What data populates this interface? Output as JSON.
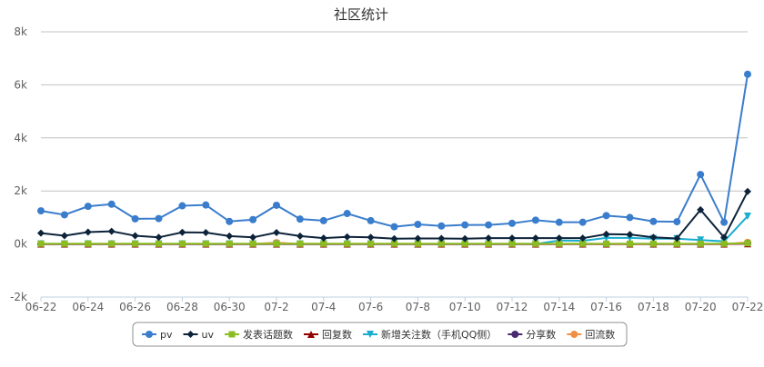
{
  "chart_data": {
    "type": "line",
    "title": "社区统计",
    "xlabel": "",
    "ylabel": "",
    "x": [
      "06-22",
      "06-23",
      "06-24",
      "06-25",
      "06-26",
      "06-27",
      "06-28",
      "06-29",
      "06-30",
      "07-1",
      "07-2",
      "07-3",
      "07-4",
      "07-5",
      "07-6",
      "07-7",
      "07-8",
      "07-9",
      "07-10",
      "07-11",
      "07-12",
      "07-13",
      "07-14",
      "07-15",
      "07-16",
      "07-17",
      "07-18",
      "07-19",
      "07-20",
      "07-21",
      "07-22"
    ],
    "x_tick_labels": [
      "06-22",
      "06-24",
      "06-26",
      "06-28",
      "06-30",
      "07-2",
      "07-4",
      "07-6",
      "07-8",
      "07-10",
      "07-12",
      "07-14",
      "07-16",
      "07-18",
      "07-20",
      "07-22"
    ],
    "y_tick_values": [
      -2000,
      0,
      2000,
      4000,
      6000,
      8000
    ],
    "y_tick_labels": [
      "-2k",
      "0k",
      "2k",
      "4k",
      "6k",
      "8k"
    ],
    "ylim": [
      -2000,
      8000
    ],
    "grid": true,
    "legend_position": "bottom",
    "series": [
      {
        "name": "pv",
        "color": "#3a7dcc",
        "marker": "circle",
        "values": [
          1250,
          1100,
          1420,
          1500,
          950,
          960,
          1440,
          1470,
          850,
          920,
          1460,
          940,
          880,
          1150,
          880,
          650,
          740,
          680,
          720,
          720,
          780,
          900,
          820,
          820,
          1070,
          1000,
          850,
          840,
          2620,
          820,
          6400
        ]
      },
      {
        "name": "uv",
        "color": "#0d233a",
        "marker": "diamond",
        "values": [
          410,
          310,
          450,
          480,
          310,
          250,
          440,
          430,
          300,
          250,
          430,
          300,
          220,
          270,
          250,
          200,
          210,
          210,
          200,
          220,
          220,
          220,
          220,
          220,
          370,
          360,
          250,
          210,
          1290,
          250,
          1980
        ]
      },
      {
        "name": "发表话题数",
        "color": "#8bbc21",
        "marker": "square",
        "values": [
          10,
          10,
          10,
          10,
          10,
          10,
          10,
          10,
          10,
          10,
          10,
          10,
          10,
          10,
          10,
          10,
          10,
          10,
          10,
          10,
          10,
          10,
          10,
          10,
          10,
          10,
          10,
          10,
          10,
          10,
          30
        ]
      },
      {
        "name": "回复数",
        "color": "#910000",
        "marker": "triangle",
        "values": [
          5,
          5,
          5,
          5,
          5,
          5,
          5,
          5,
          5,
          5,
          5,
          5,
          5,
          5,
          5,
          5,
          5,
          5,
          5,
          5,
          5,
          5,
          5,
          5,
          5,
          5,
          5,
          5,
          5,
          5,
          10
        ]
      },
      {
        "name": "新增关注数（手机QQ侧）",
        "color": "#1aadce",
        "marker": "triangle-down",
        "values": [
          0,
          0,
          0,
          0,
          0,
          0,
          0,
          0,
          0,
          0,
          0,
          0,
          0,
          0,
          0,
          0,
          0,
          0,
          0,
          0,
          0,
          0,
          130,
          120,
          230,
          230,
          200,
          200,
          150,
          100,
          1050
        ]
      },
      {
        "name": "分享数",
        "color": "#492970",
        "marker": "circle",
        "values": [
          0,
          0,
          0,
          0,
          0,
          0,
          0,
          0,
          0,
          0,
          0,
          0,
          0,
          0,
          0,
          0,
          0,
          0,
          0,
          0,
          0,
          0,
          0,
          0,
          0,
          0,
          0,
          0,
          0,
          0,
          20
        ]
      },
      {
        "name": "回流数",
        "color": "#f28f43",
        "marker": "circle",
        "values": [
          0,
          0,
          0,
          0,
          0,
          0,
          0,
          0,
          0,
          0,
          50,
          0,
          0,
          0,
          0,
          0,
          0,
          0,
          0,
          0,
          0,
          0,
          0,
          0,
          0,
          0,
          0,
          0,
          0,
          0,
          60
        ]
      }
    ]
  }
}
